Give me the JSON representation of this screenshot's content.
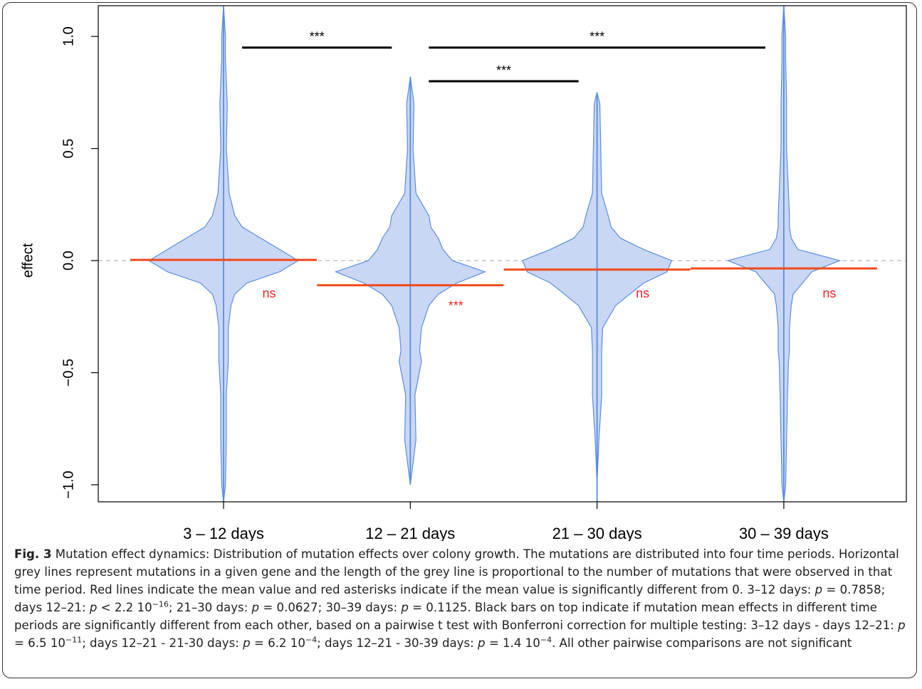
{
  "chart_data": {
    "type": "beanplot",
    "y_label": "effect",
    "categories": [
      "3 – 12 days",
      "12 – 21 days",
      "21 – 30 days",
      "30 – 39 days"
    ],
    "ylim": [
      -1.076,
      1.137
    ],
    "yticks": [
      {
        "value": -1,
        "label": "−1.0"
      },
      {
        "value": -0.5,
        "label": "−0.5"
      },
      {
        "value": 0,
        "label": "0.0"
      },
      0.5,
      {
        "value": 1,
        "label": "1.0"
      }
    ],
    "reference_line": 0,
    "violin_color": "#c9d7f5",
    "violin_edge": "#5b8de0",
    "mean_color": "#f04a1c",
    "significance_color": "#e8262a",
    "density_y": [
      -1.0,
      -0.8,
      -0.6,
      -0.45,
      -0.4,
      -0.3,
      -0.2,
      -0.15,
      -0.1,
      -0.05,
      0,
      0.05,
      0.1,
      0.15,
      0.2,
      0.3,
      0.5,
      0.7,
      0.9,
      1.0
    ],
    "series": [
      {
        "extent": [
          -1.08,
          1.14
        ],
        "mean": 0.003,
        "significance": "ns",
        "density": [
          0.02,
          0.03,
          0.03,
          0.05,
          0.05,
          0.05,
          0.08,
          0.12,
          0.25,
          0.6,
          0.8,
          0.6,
          0.4,
          0.2,
          0.12,
          0.06,
          0.03,
          0.04,
          0.02,
          0.02
        ]
      },
      {
        "extent": [
          -1.0,
          0.82
        ],
        "mean": -0.11,
        "significance": "***",
        "density": [
          0.02,
          0.06,
          0.05,
          0.12,
          0.1,
          0.12,
          0.2,
          0.3,
          0.5,
          0.8,
          0.45,
          0.35,
          0.3,
          0.22,
          0.2,
          0.06,
          0.03,
          0.04,
          0,
          0
        ]
      },
      {
        "extent": [
          -1.08,
          0.75
        ],
        "mean": -0.04,
        "significance": "ns",
        "density": [
          0,
          0.02,
          0.05,
          0.05,
          0.05,
          0.06,
          0.2,
          0.35,
          0.5,
          0.75,
          0.8,
          0.5,
          0.25,
          0.15,
          0.12,
          0.05,
          0.04,
          0.03,
          0,
          0
        ]
      },
      {
        "extent": [
          -1.08,
          1.14
        ],
        "mean": -0.035,
        "significance": "ns",
        "density": [
          0.02,
          0.03,
          0.04,
          0.05,
          0.06,
          0.06,
          0.08,
          0.1,
          0.2,
          0.3,
          0.6,
          0.15,
          0.08,
          0.06,
          0.06,
          0.05,
          0.03,
          0.03,
          0.02,
          0.02
        ]
      }
    ],
    "comparisons": [
      {
        "from": 0,
        "to": 1,
        "level": 0.95,
        "label": "***"
      },
      {
        "from": 1,
        "to": 3,
        "level": 0.95,
        "label": "***"
      },
      {
        "from": 1,
        "to": 2,
        "level": 0.8,
        "label": "***"
      }
    ]
  },
  "caption": {
    "label": "Fig. 3",
    "runs": [
      " Mutation effect dynamics: Distribution of mutation effects over colony growth. The mutations are distributed into four time periods. Horizontal grey lines represent mutations in a given gene and the length of the grey line is proportional to the number of mutations that were observed in that time period. Red lines indicate the mean value and red asterisks indicate if the mean value is significantly different from 0. 3–12 days: ",
      "p",
      " = 0.7858; days 12–21: ",
      "p",
      " < 2.2 10",
      "−16",
      "; 21–30 days: ",
      "p",
      " = 0.0627; 30–39 days: ",
      "p",
      " = 0.1125. Black bars on top indicate if mutation mean effects in different time periods are significantly different from each other, based on a pairwise t test with Bonferroni correction for multiple testing: 3–12 days - days 12–21: ",
      "p",
      " = 6.5 10",
      "−11",
      "; days 12–21 - 21-30 days: ",
      "p",
      " = 6.2 10",
      "−4",
      "; days 12–21 - 30-39 days: ",
      "p",
      " = 1.4 10",
      "−4",
      ". All other pairwise comparisons are not significant"
    ]
  }
}
